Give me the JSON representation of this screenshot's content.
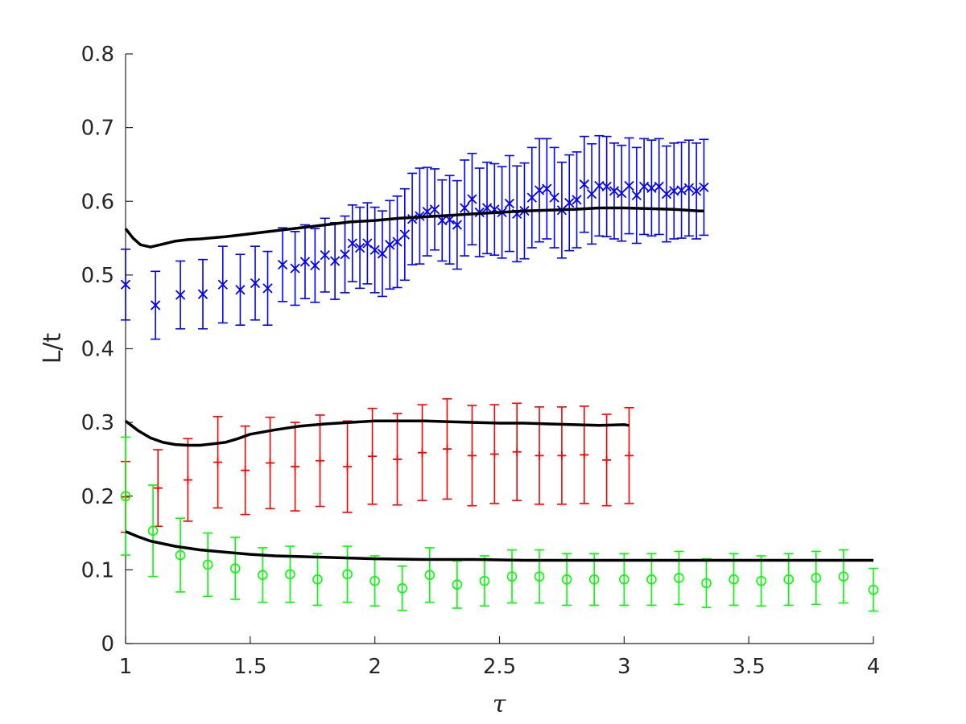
{
  "chart_data": {
    "type": "scatter",
    "xlabel": "τ",
    "ylabel": "L/t",
    "xlim": [
      1,
      4
    ],
    "ylim": [
      0,
      0.8
    ],
    "xticks": [
      1,
      1.5,
      2,
      2.5,
      3,
      3.5,
      4
    ],
    "xtick_labels": [
      "1",
      "1.5",
      "2",
      "2.5",
      "3",
      "3.5",
      "4"
    ],
    "yticks": [
      0,
      0.1,
      0.2,
      0.3,
      0.4,
      0.5,
      0.6,
      0.7,
      0.8
    ],
    "ytick_labels": [
      "0",
      "0.1",
      "0.2",
      "0.3",
      "0.4",
      "0.5",
      "0.6",
      "0.7",
      "0.8"
    ],
    "grid": false,
    "legend": "none",
    "series": [
      {
        "kind": "errorbar",
        "marker": "x",
        "color": "#0000ff",
        "x": [
          1.0,
          1.12,
          1.22,
          1.31,
          1.39,
          1.46,
          1.52,
          1.57,
          1.63,
          1.68,
          1.72,
          1.76,
          1.8,
          1.84,
          1.88,
          1.91,
          1.94,
          1.97,
          2.0,
          2.03,
          2.06,
          2.09,
          2.12,
          2.15,
          2.18,
          2.21,
          2.24,
          2.27,
          2.3,
          2.33,
          2.36,
          2.39,
          2.42,
          2.45,
          2.48,
          2.51,
          2.54,
          2.57,
          2.6,
          2.63,
          2.66,
          2.69,
          2.72,
          2.75,
          2.78,
          2.81,
          2.84,
          2.87,
          2.9,
          2.93,
          2.96,
          2.99,
          3.02,
          3.05,
          3.08,
          3.11,
          3.14,
          3.17,
          3.2,
          3.23,
          3.26,
          3.29,
          3.32
        ],
        "y": [
          0.487,
          0.459,
          0.473,
          0.474,
          0.487,
          0.48,
          0.489,
          0.482,
          0.514,
          0.509,
          0.518,
          0.513,
          0.527,
          0.519,
          0.528,
          0.543,
          0.537,
          0.543,
          0.534,
          0.529,
          0.541,
          0.545,
          0.555,
          0.576,
          0.58,
          0.586,
          0.589,
          0.574,
          0.575,
          0.568,
          0.591,
          0.603,
          0.585,
          0.591,
          0.589,
          0.585,
          0.597,
          0.583,
          0.587,
          0.605,
          0.615,
          0.617,
          0.605,
          0.588,
          0.598,
          0.602,
          0.623,
          0.61,
          0.621,
          0.62,
          0.614,
          0.611,
          0.621,
          0.608,
          0.62,
          0.618,
          0.62,
          0.61,
          0.614,
          0.615,
          0.618,
          0.614,
          0.619
        ],
        "err": [
          0.048,
          0.046,
          0.046,
          0.047,
          0.052,
          0.048,
          0.05,
          0.05,
          0.05,
          0.05,
          0.05,
          0.05,
          0.05,
          0.052,
          0.052,
          0.052,
          0.055,
          0.055,
          0.058,
          0.058,
          0.06,
          0.062,
          0.062,
          0.062,
          0.065,
          0.06,
          0.055,
          0.055,
          0.06,
          0.06,
          0.065,
          0.062,
          0.06,
          0.062,
          0.062,
          0.062,
          0.065,
          0.065,
          0.065,
          0.068,
          0.07,
          0.068,
          0.068,
          0.065,
          0.065,
          0.065,
          0.065,
          0.068,
          0.068,
          0.068,
          0.065,
          0.065,
          0.065,
          0.065,
          0.065,
          0.065,
          0.065,
          0.065,
          0.065,
          0.065,
          0.065,
          0.065,
          0.065
        ]
      },
      {
        "kind": "line",
        "color": "#000000",
        "x": [
          1.0,
          1.03,
          1.06,
          1.1,
          1.15,
          1.2,
          1.25,
          1.3,
          1.4,
          1.5,
          1.6,
          1.7,
          1.8,
          1.9,
          2.0,
          2.1,
          2.2,
          2.3,
          2.4,
          2.5,
          2.6,
          2.7,
          2.8,
          2.9,
          3.0,
          3.1,
          3.2,
          3.3,
          3.32
        ],
        "y": [
          0.563,
          0.55,
          0.541,
          0.538,
          0.542,
          0.546,
          0.548,
          0.549,
          0.552,
          0.556,
          0.56,
          0.564,
          0.568,
          0.572,
          0.574,
          0.577,
          0.579,
          0.581,
          0.583,
          0.585,
          0.587,
          0.588,
          0.589,
          0.591,
          0.591,
          0.59,
          0.589,
          0.587,
          0.587
        ]
      },
      {
        "kind": "errorbar",
        "marker": "+",
        "color": "#ff0000",
        "x": [
          1.0,
          1.13,
          1.25,
          1.37,
          1.48,
          1.58,
          1.68,
          1.78,
          1.89,
          1.99,
          2.09,
          2.19,
          2.29,
          2.39,
          2.48,
          2.57,
          2.66,
          2.75,
          2.84,
          2.93,
          3.02
        ],
        "y": [
          0.199,
          0.211,
          0.222,
          0.246,
          0.235,
          0.245,
          0.24,
          0.248,
          0.24,
          0.254,
          0.25,
          0.259,
          0.264,
          0.255,
          0.257,
          0.26,
          0.255,
          0.255,
          0.256,
          0.249,
          0.255
        ],
        "err": [
          0.048,
          0.052,
          0.056,
          0.062,
          0.06,
          0.062,
          0.06,
          0.062,
          0.062,
          0.065,
          0.062,
          0.065,
          0.068,
          0.068,
          0.067,
          0.066,
          0.066,
          0.066,
          0.066,
          0.062,
          0.065
        ]
      },
      {
        "kind": "line",
        "color": "#000000",
        "x": [
          1.0,
          1.05,
          1.1,
          1.15,
          1.2,
          1.25,
          1.3,
          1.35,
          1.4,
          1.45,
          1.5,
          1.6,
          1.7,
          1.8,
          1.9,
          2.0,
          2.1,
          2.2,
          2.3,
          2.4,
          2.5,
          2.6,
          2.7,
          2.8,
          2.9,
          3.0,
          3.02
        ],
        "y": [
          0.302,
          0.289,
          0.279,
          0.273,
          0.27,
          0.269,
          0.269,
          0.271,
          0.273,
          0.278,
          0.284,
          0.29,
          0.295,
          0.298,
          0.3,
          0.302,
          0.302,
          0.302,
          0.301,
          0.3,
          0.299,
          0.299,
          0.298,
          0.297,
          0.296,
          0.297,
          0.296
        ]
      },
      {
        "kind": "errorbar",
        "marker": "o",
        "color": "#00ff00",
        "x": [
          1.0,
          1.11,
          1.22,
          1.33,
          1.44,
          1.55,
          1.66,
          1.77,
          1.89,
          2.0,
          2.11,
          2.22,
          2.33,
          2.44,
          2.55,
          2.66,
          2.77,
          2.88,
          3.0,
          3.11,
          3.22,
          3.33,
          3.44,
          3.55,
          3.66,
          3.77,
          3.88,
          4.0
        ],
        "y": [
          0.2,
          0.153,
          0.12,
          0.107,
          0.102,
          0.093,
          0.094,
          0.087,
          0.094,
          0.085,
          0.075,
          0.093,
          0.08,
          0.085,
          0.091,
          0.091,
          0.087,
          0.087,
          0.087,
          0.087,
          0.089,
          0.082,
          0.087,
          0.085,
          0.087,
          0.089,
          0.091,
          0.073
        ],
        "err": [
          0.08,
          0.062,
          0.05,
          0.043,
          0.042,
          0.037,
          0.038,
          0.035,
          0.038,
          0.034,
          0.03,
          0.037,
          0.032,
          0.034,
          0.036,
          0.036,
          0.035,
          0.035,
          0.035,
          0.035,
          0.036,
          0.033,
          0.035,
          0.034,
          0.035,
          0.036,
          0.036,
          0.029
        ]
      },
      {
        "kind": "line",
        "color": "#000000",
        "x": [
          1.0,
          1.05,
          1.1,
          1.2,
          1.3,
          1.4,
          1.5,
          1.6,
          1.8,
          2.0,
          2.2,
          2.4,
          2.6,
          2.8,
          3.0,
          3.2,
          3.4,
          3.6,
          3.8,
          4.0
        ],
        "y": [
          0.152,
          0.145,
          0.139,
          0.132,
          0.127,
          0.124,
          0.121,
          0.119,
          0.117,
          0.115,
          0.114,
          0.114,
          0.113,
          0.113,
          0.113,
          0.113,
          0.113,
          0.113,
          0.113,
          0.113
        ]
      }
    ]
  }
}
